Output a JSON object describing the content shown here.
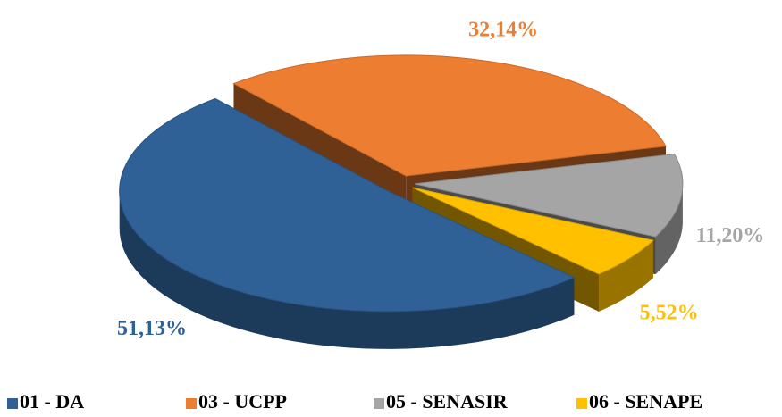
{
  "chart_data": {
    "type": "pie",
    "categories": [
      "01 - DA",
      "03 - UCPP",
      "05 - SENASIR",
      "06 - SENAPE"
    ],
    "values": [
      51.13,
      32.14,
      11.2,
      5.52
    ],
    "value_labels": [
      "51,13%",
      "32,14%",
      "11,20%",
      "5,52%"
    ],
    "colors": [
      "#2f6096",
      "#ed7d31",
      "#a5a5a5",
      "#ffc000"
    ],
    "legend": "bottom"
  }
}
